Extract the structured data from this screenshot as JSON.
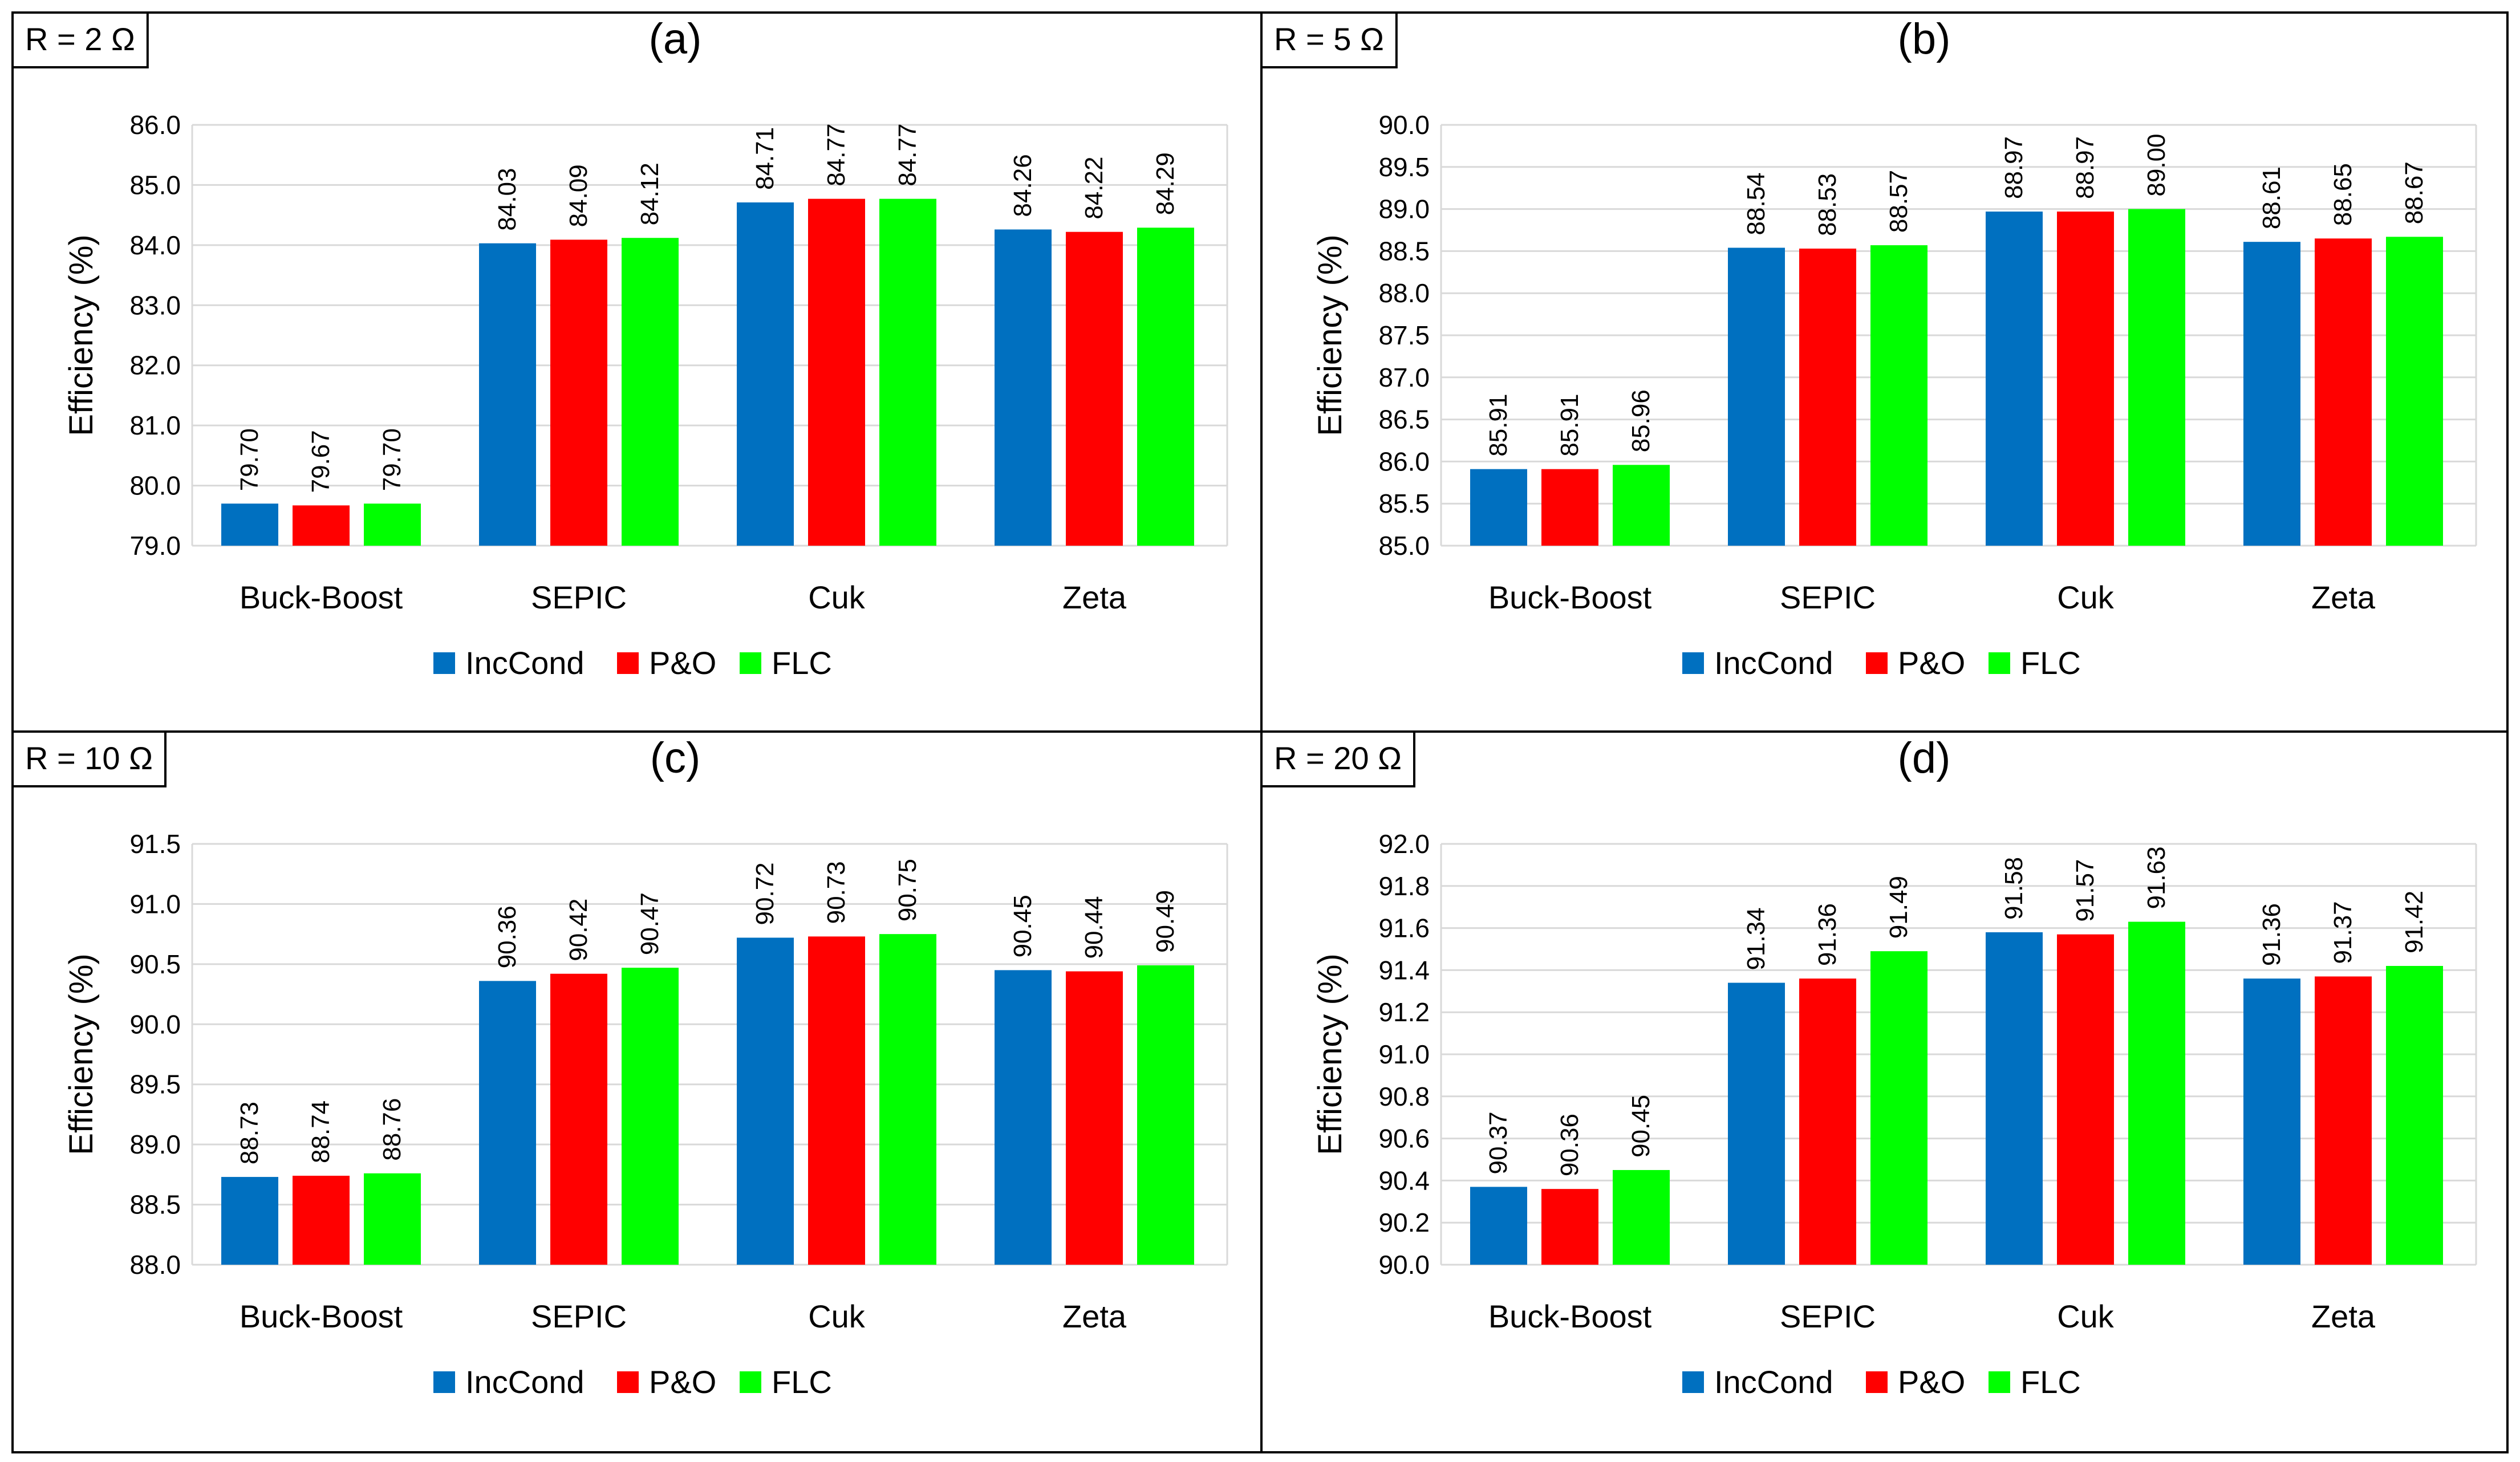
{
  "colors": {
    "series": [
      "#0070c0",
      "#ff0000",
      "#00ff00"
    ],
    "grid": "#d9d9d9",
    "text": "#000000",
    "panel_border": "#000000"
  },
  "panels": [
    {
      "label": "(a)",
      "tag": "R = 2 Ω",
      "ylabel": "Efficiency (%)",
      "ylim": [
        79.0,
        86.0
      ],
      "ystep": 1.0,
      "ytick_decimals": 1,
      "categories": [
        "Buck-Boost",
        "SEPIC",
        "Cuk",
        "Zeta"
      ],
      "series": [
        {
          "name": "IncCond",
          "values": [
            79.7,
            84.03,
            84.71,
            84.26
          ]
        },
        {
          "name": "P&O",
          "values": [
            79.67,
            84.09,
            84.77,
            84.22
          ]
        },
        {
          "name": "FLC",
          "values": [
            79.7,
            84.12,
            84.77,
            84.29
          ]
        }
      ]
    },
    {
      "label": "(b)",
      "tag": "R = 5 Ω",
      "ylabel": "Efficiency (%)",
      "ylim": [
        85.0,
        90.0
      ],
      "ystep": 0.5,
      "ytick_decimals": 1,
      "categories": [
        "Buck-Boost",
        "SEPIC",
        "Cuk",
        "Zeta"
      ],
      "series": [
        {
          "name": "IncCond",
          "values": [
            85.91,
            88.54,
            88.97,
            88.61
          ]
        },
        {
          "name": "P&O",
          "values": [
            85.91,
            88.53,
            88.97,
            88.65
          ]
        },
        {
          "name": "FLC",
          "values": [
            85.96,
            88.57,
            89.0,
            88.67
          ]
        }
      ]
    },
    {
      "label": "(c)",
      "tag": "R = 10 Ω",
      "ylabel": "Efficiency (%)",
      "ylim": [
        88.0,
        91.5
      ],
      "ystep": 0.5,
      "ytick_decimals": 1,
      "categories": [
        "Buck-Boost",
        "SEPIC",
        "Cuk",
        "Zeta"
      ],
      "series": [
        {
          "name": "IncCond",
          "values": [
            88.73,
            90.36,
            90.72,
            90.45
          ]
        },
        {
          "name": "P&O",
          "values": [
            88.74,
            90.42,
            90.73,
            90.44
          ]
        },
        {
          "name": "FLC",
          "values": [
            88.76,
            90.47,
            90.75,
            90.49
          ]
        }
      ]
    },
    {
      "label": "(d)",
      "tag": "R = 20 Ω",
      "ylabel": "Efficiency (%)",
      "ylim": [
        90.0,
        92.0
      ],
      "ystep": 0.2,
      "ytick_decimals": 1,
      "categories": [
        "Buck-Boost",
        "SEPIC",
        "Cuk",
        "Zeta"
      ],
      "series": [
        {
          "name": "IncCond",
          "values": [
            90.37,
            91.34,
            91.58,
            91.36
          ]
        },
        {
          "name": "P&O",
          "values": [
            90.36,
            91.36,
            91.57,
            91.37
          ]
        },
        {
          "name": "FLC",
          "values": [
            90.45,
            91.49,
            91.63,
            91.42
          ]
        }
      ]
    }
  ],
  "chart_data": [
    {
      "type": "bar",
      "title": "(a)",
      "annotation": "R = 2 Ω",
      "ylabel": "Efficiency (%)",
      "xlabel": "",
      "ylim": [
        79.0,
        86.0
      ],
      "grid": "horizontal",
      "legend": "bottom-center",
      "categories": [
        "Buck-Boost",
        "SEPIC",
        "Cuk",
        "Zeta"
      ],
      "series": [
        {
          "name": "IncCond",
          "values": [
            79.7,
            84.03,
            84.71,
            84.26
          ]
        },
        {
          "name": "P&O",
          "values": [
            79.67,
            84.09,
            84.77,
            84.22
          ]
        },
        {
          "name": "FLC",
          "values": [
            79.7,
            84.12,
            84.77,
            84.29
          ]
        }
      ]
    },
    {
      "type": "bar",
      "title": "(b)",
      "annotation": "R = 5 Ω",
      "ylabel": "Efficiency (%)",
      "xlabel": "",
      "ylim": [
        85.0,
        90.0
      ],
      "grid": "horizontal",
      "legend": "bottom-center",
      "categories": [
        "Buck-Boost",
        "SEPIC",
        "Cuk",
        "Zeta"
      ],
      "series": [
        {
          "name": "IncCond",
          "values": [
            85.91,
            88.54,
            88.97,
            88.61
          ]
        },
        {
          "name": "P&O",
          "values": [
            85.91,
            88.53,
            88.97,
            88.65
          ]
        },
        {
          "name": "FLC",
          "values": [
            85.96,
            88.57,
            89.0,
            88.67
          ]
        }
      ]
    },
    {
      "type": "bar",
      "title": "(c)",
      "annotation": "R = 10 Ω",
      "ylabel": "Efficiency (%)",
      "xlabel": "",
      "ylim": [
        88.0,
        91.5
      ],
      "grid": "horizontal",
      "legend": "bottom-center",
      "categories": [
        "Buck-Boost",
        "SEPIC",
        "Cuk",
        "Zeta"
      ],
      "series": [
        {
          "name": "IncCond",
          "values": [
            88.73,
            90.36,
            90.72,
            90.45
          ]
        },
        {
          "name": "P&O",
          "values": [
            88.74,
            90.42,
            90.73,
            90.44
          ]
        },
        {
          "name": "FLC",
          "values": [
            88.76,
            90.47,
            90.75,
            90.49
          ]
        }
      ]
    },
    {
      "type": "bar",
      "title": "(d)",
      "annotation": "R = 20 Ω",
      "ylabel": "Efficiency (%)",
      "xlabel": "",
      "ylim": [
        90.0,
        92.0
      ],
      "grid": "horizontal",
      "legend": "bottom-center",
      "categories": [
        "Buck-Boost",
        "SEPIC",
        "Cuk",
        "Zeta"
      ],
      "series": [
        {
          "name": "IncCond",
          "values": [
            90.37,
            91.34,
            91.58,
            91.36
          ]
        },
        {
          "name": "P&O",
          "values": [
            90.36,
            91.36,
            91.57,
            91.37
          ]
        },
        {
          "name": "FLC",
          "values": [
            90.45,
            91.49,
            91.63,
            91.42
          ]
        }
      ]
    }
  ]
}
